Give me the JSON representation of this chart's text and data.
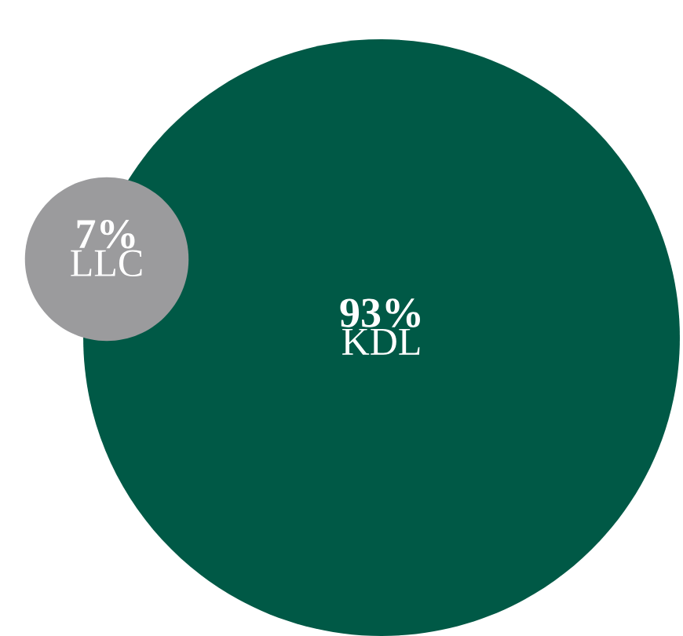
{
  "chart_data": {
    "type": "other",
    "categories": [
      "LLC",
      "KDL"
    ],
    "values": [
      7,
      93
    ],
    "value_labels": [
      "7%",
      "93%"
    ],
    "colors": [
      "#9b9b9d",
      "#005946"
    ]
  }
}
